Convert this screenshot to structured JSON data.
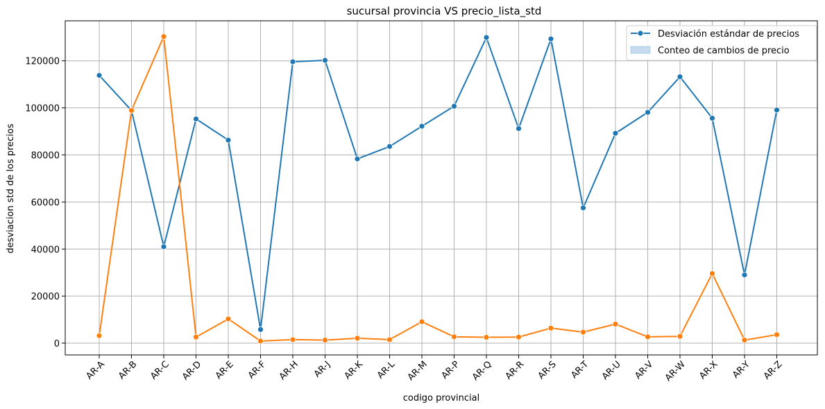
{
  "chart_data": {
    "type": "line",
    "title": "sucursal provincia VS precio_lista_std",
    "xlabel": "codigo provincial",
    "ylabel": "desviacion std de los precios",
    "categories": [
      "AR-A",
      "AR-B",
      "AR-C",
      "AR-D",
      "AR-E",
      "AR-F",
      "AR-H",
      "AR-J",
      "AR-K",
      "AR-L",
      "AR-M",
      "AR-P",
      "AR-Q",
      "AR-R",
      "AR-S",
      "AR-T",
      "AR-U",
      "AR-V",
      "AR-W",
      "AR-X",
      "AR-Y",
      "AR-Z"
    ],
    "ylim": [
      -5000,
      137000
    ],
    "yticks": [
      0,
      20000,
      40000,
      60000,
      80000,
      100000,
      120000
    ],
    "ytick_labels": [
      "0",
      "20000",
      "40000",
      "60000",
      "80000",
      "100000",
      "120000"
    ],
    "grid": true,
    "legend_position": "top-right",
    "series": [
      {
        "name": "Desviación estándar de precios",
        "color": "#1f77b4",
        "marker": "circle",
        "values": [
          113800,
          98900,
          41000,
          95300,
          86300,
          5800,
          119600,
          120200,
          78300,
          83600,
          92200,
          100700,
          129900,
          91200,
          129300,
          57500,
          89200,
          98100,
          113200,
          95600,
          29000,
          99100
        ]
      },
      {
        "color": "#ff7f0e",
        "marker": "circle",
        "values": [
          3200,
          98900,
          130300,
          2600,
          10300,
          900,
          1500,
          1300,
          2100,
          1500,
          9100,
          2700,
          2500,
          2600,
          6400,
          4700,
          8100,
          2700,
          2900,
          29600,
          1300,
          3600
        ]
      }
    ],
    "legend_entries": [
      {
        "label": "Desviación estándar de precios",
        "kind": "line-marker",
        "color": "#1f77b4"
      },
      {
        "label": "Conteo de cambios de precio",
        "kind": "patch",
        "color": "#c6dbef"
      }
    ]
  }
}
